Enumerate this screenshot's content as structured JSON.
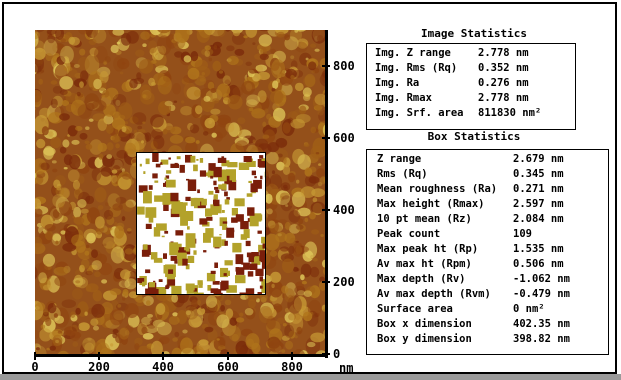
{
  "axes": {
    "y_ticks": [
      "800",
      "600",
      "400",
      "200",
      "0"
    ],
    "x_ticks": [
      "0",
      "200",
      "400",
      "600",
      "800"
    ],
    "unit": "nm"
  },
  "colors": {
    "surface_dark": "#7a2a0a",
    "surface_mid": "#b0751b",
    "surface_light": "#e0c85a",
    "box_bg": "#ffffff",
    "box_dark": "#7a1e0a",
    "box_olive": "#b3a22a"
  },
  "image_stats": {
    "title": "Image Statistics",
    "rows": [
      {
        "label": "Img. Z range",
        "value": "2.778 nm"
      },
      {
        "label": "Img. Rms (Rq)",
        "value": "0.352 nm"
      },
      {
        "label": "Img. Ra",
        "value": "0.276 nm"
      },
      {
        "label": "Img. Rmax",
        "value": "2.778 nm"
      },
      {
        "label": "Img. Srf. area",
        "value": "811830 nm²"
      }
    ]
  },
  "box_stats": {
    "title": "Box Statistics",
    "rows": [
      {
        "label": "Z range",
        "value": "2.679 nm"
      },
      {
        "label": "Rms (Rq)",
        "value": "0.345 nm"
      },
      {
        "label": "Mean roughness (Ra)",
        "value": "0.271 nm"
      },
      {
        "label": "Max height (Rmax)",
        "value": "2.597 nm"
      },
      {
        "label": "10 pt mean (Rz)",
        "value": "2.084 nm"
      },
      {
        "label": "Peak count",
        "value": "109"
      },
      {
        "label": "Max peak ht (Rp)",
        "value": "1.535 nm"
      },
      {
        "label": "Av max ht (Rpm)",
        "value": "0.506 nm"
      },
      {
        "label": "Max depth (Rv)",
        "value": "-1.062 nm"
      },
      {
        "label": "Av max depth (Rvm)",
        "value": "-0.479 nm"
      },
      {
        "label": "Surface area",
        "value": "0 nm²"
      },
      {
        "label": "Box x dimension",
        "value": "402.35 nm"
      },
      {
        "label": "Box y dimension",
        "value": "398.82 nm"
      }
    ]
  }
}
